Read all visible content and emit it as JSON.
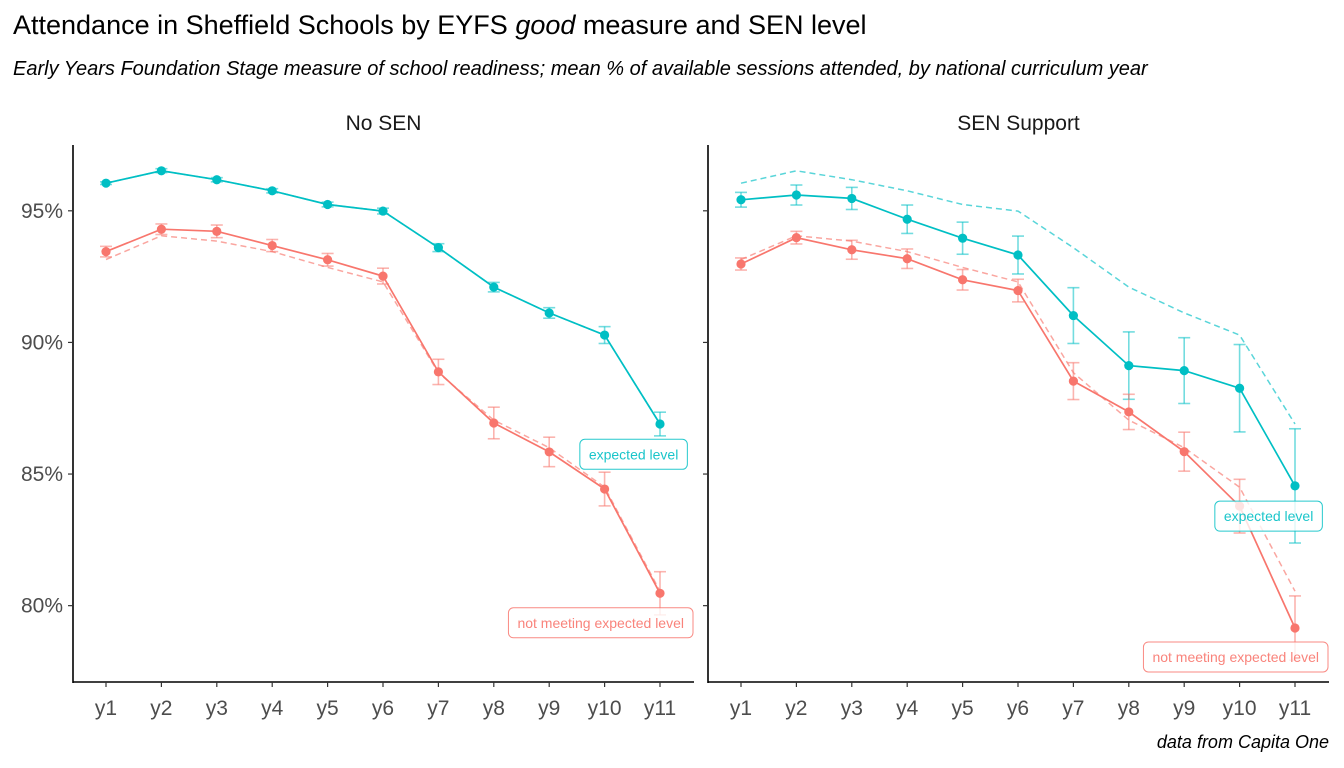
{
  "title_parts": [
    "Attendance in Sheffield Schools by EYFS ",
    "good",
    " measure and SEN level"
  ],
  "subtitle": "Early Years Foundation Stage measure of school readiness; mean % of available sessions attended, by national curriculum year",
  "caption": "data from Capita One",
  "colors": {
    "expected": "#00BFC4",
    "not_expected": "#F8766D",
    "axis": "#000000",
    "tick_text": "#4d4d4d"
  },
  "chart_data": {
    "type": "line",
    "x": [
      "y1",
      "y2",
      "y3",
      "y4",
      "y5",
      "y6",
      "y7",
      "y8",
      "y9",
      "y10",
      "y11"
    ],
    "y_ticks": [
      80,
      85,
      90,
      95
    ],
    "y_tick_labels": [
      "80%",
      "85%",
      "90%",
      "95%"
    ],
    "ylim": [
      77.1,
      97.5
    ],
    "grid": false,
    "legend": "none (direct labels)",
    "facets": [
      {
        "strip": "No SEN",
        "series": [
          {
            "name": "expected level",
            "color": "#00BFC4",
            "values": [
              96.05,
              96.52,
              96.18,
              95.76,
              95.24,
              94.99,
              93.6,
              92.1,
              91.12,
              90.28,
              86.9
            ],
            "ci_low": [
              96.0,
              96.45,
              96.1,
              95.68,
              95.15,
              94.88,
              93.45,
              91.92,
              90.92,
              89.96,
              86.45
            ],
            "ci_high": [
              96.1,
              96.6,
              96.26,
              95.84,
              95.33,
              95.1,
              93.75,
              92.28,
              91.32,
              90.6,
              87.35
            ]
          },
          {
            "name": "not meeting expected level",
            "color": "#F8766D",
            "values": [
              93.45,
              94.3,
              94.22,
              93.68,
              93.14,
              92.52,
              88.88,
              86.94,
              85.84,
              84.43,
              80.47
            ],
            "ci_low": [
              93.25,
              94.1,
              93.98,
              93.45,
              92.9,
              92.22,
              88.4,
              86.34,
              85.28,
              83.79,
              79.65
            ],
            "ci_high": [
              93.65,
              94.5,
              94.46,
              93.91,
              93.38,
              92.82,
              89.36,
              87.54,
              86.4,
              85.07,
              81.29
            ]
          }
        ],
        "reference_lines": [
          {
            "name": "expected level",
            "color": "#00BFC4",
            "values": [
              96.05,
              96.52,
              96.18,
              95.76,
              95.24,
              94.99,
              93.6,
              92.1,
              91.12,
              90.28,
              86.9
            ]
          },
          {
            "name": "not meeting expected level",
            "color": "#F8766D",
            "values": [
              93.15,
              94.05,
              93.85,
              93.45,
              92.85,
              92.3,
              88.85,
              87.05,
              86.0,
              84.5,
              80.55
            ]
          }
        ],
        "labels": [
          {
            "text": "expected level",
            "color": "#00BFC4",
            "x": "y10",
            "y": 85.75
          },
          {
            "text": "not meeting expected level",
            "color": "#F8766D",
            "x": "y10",
            "y": 79.35
          }
        ]
      },
      {
        "strip": "SEN Support",
        "series": [
          {
            "name": "expected level",
            "color": "#00BFC4",
            "values": [
              95.42,
              95.6,
              95.47,
              94.68,
              93.96,
              93.32,
              91.02,
              89.12,
              88.93,
              88.26,
              84.55
            ],
            "ci_low": [
              95.14,
              95.22,
              95.05,
              94.14,
              93.35,
              92.6,
              89.96,
              87.84,
              87.68,
              86.6,
              82.38
            ],
            "ci_high": [
              95.7,
              95.98,
              95.89,
              95.22,
              94.57,
              94.04,
              92.08,
              90.4,
              90.18,
              89.92,
              86.72
            ]
          },
          {
            "name": "not meeting expected level",
            "color": "#F8766D",
            "values": [
              92.98,
              93.98,
              93.52,
              93.18,
              92.38,
              91.97,
              88.53,
              87.36,
              85.85,
              83.78,
              79.15
            ],
            "ci_low": [
              92.75,
              93.74,
              93.16,
              92.81,
              91.99,
              91.54,
              87.83,
              86.69,
              85.11,
              82.76,
              77.93
            ],
            "ci_high": [
              93.21,
              94.22,
              93.88,
              93.55,
              92.77,
              92.4,
              89.23,
              88.03,
              86.59,
              84.8,
              80.37
            ]
          }
        ],
        "reference_lines": [
          {
            "name": "expected level",
            "color": "#00BFC4",
            "values": [
              96.05,
              96.52,
              96.18,
              95.76,
              95.24,
              94.99,
              93.6,
              92.1,
              91.12,
              90.28,
              86.9
            ]
          },
          {
            "name": "not meeting expected level",
            "color": "#F8766D",
            "values": [
              93.15,
              94.05,
              93.85,
              93.45,
              92.85,
              92.3,
              88.85,
              87.05,
              86.0,
              84.5,
              80.55
            ]
          }
        ],
        "labels": [
          {
            "text": "expected level",
            "color": "#00BFC4",
            "x": "y10",
            "y": 83.4
          },
          {
            "text": "not meeting expected level",
            "color": "#F8766D",
            "x": "y10",
            "y": 78.05
          }
        ]
      }
    ]
  }
}
